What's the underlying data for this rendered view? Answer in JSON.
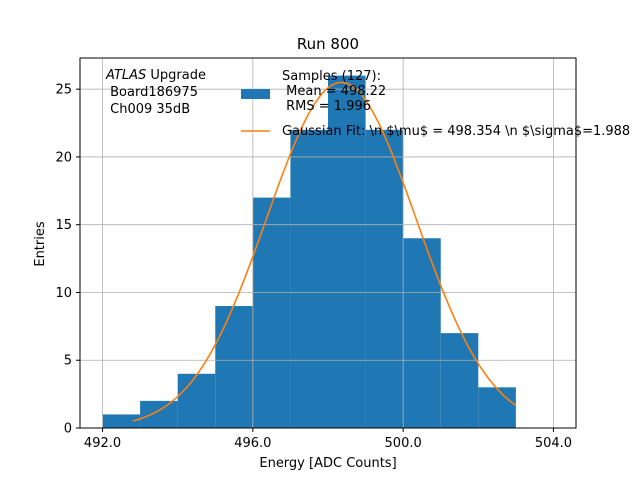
{
  "chart_data": {
    "type": "bar",
    "title": "Run 800",
    "xlabel": "Energy [ADC Counts]",
    "ylabel": "Entries",
    "xlim": [
      491.4,
      504.6
    ],
    "ylim": [
      0,
      27.3
    ],
    "xticks": [
      492.0,
      496.0,
      500.0,
      504.0
    ],
    "xtick_labels": [
      "492.0",
      "496.0",
      "500.0",
      "504.0"
    ],
    "yticks": [
      0,
      5,
      10,
      15,
      20,
      25
    ],
    "ytick_labels": [
      "0",
      "5",
      "10",
      "15",
      "20",
      "25"
    ],
    "grid": true,
    "legend_position": "top-right",
    "colors": {
      "histogram": "#1f77b4",
      "fit": "#ff7f0e",
      "grid": "#b0b0b0"
    },
    "histogram": {
      "name": "Samples (127):\n Mean = 498.22\n RMS = 1.996",
      "bin_edges": [
        492,
        493,
        494,
        495,
        496,
        497,
        498,
        499,
        500,
        501,
        502,
        503
      ],
      "counts": [
        1,
        2,
        4,
        9,
        17,
        22,
        26,
        22,
        14,
        7,
        3
      ]
    },
    "fit": {
      "name": "Gaussian Fit: \\n $\\mu$ = 498.354 \\n $\\sigma$=1.988",
      "mu": 498.354,
      "sigma": 1.988,
      "amplitude": 25.5,
      "x_range": [
        492.8,
        503.0
      ]
    },
    "annotation": {
      "lines": [
        "ATLAS Upgrade",
        " Board186975",
        " Ch009 35dB"
      ]
    }
  }
}
